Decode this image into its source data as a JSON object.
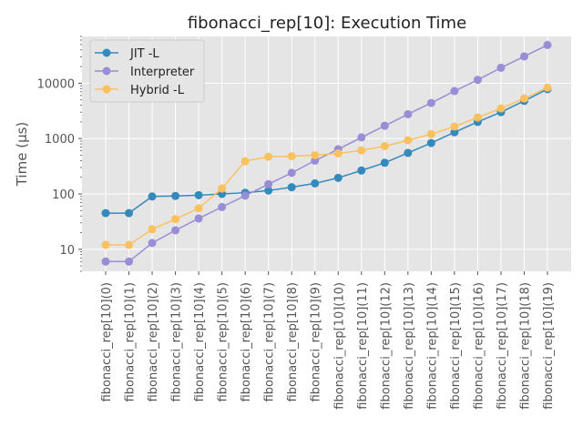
{
  "chart_data": {
    "type": "line",
    "title": "fibonacci_rep[10]: Execution Time",
    "xlabel": "",
    "ylabel": "Time (μs)",
    "yscale": "log",
    "ylim": [
      4,
      70000
    ],
    "grid": true,
    "legend_position": "top-left",
    "categories": [
      "fibonacci_rep[10](0)",
      "fibonacci_rep[10](1)",
      "fibonacci_rep[10](2)",
      "fibonacci_rep[10](3)",
      "fibonacci_rep[10](4)",
      "fibonacci_rep[10](5)",
      "fibonacci_rep[10](6)",
      "fibonacci_rep[10](7)",
      "fibonacci_rep[10](8)",
      "fibonacci_rep[10](9)",
      "fibonacci_rep[10](10)",
      "fibonacci_rep[10](11)",
      "fibonacci_rep[10](12)",
      "fibonacci_rep[10](13)",
      "fibonacci_rep[10](14)",
      "fibonacci_rep[10](15)",
      "fibonacci_rep[10](16)",
      "fibonacci_rep[10](17)",
      "fibonacci_rep[10](18)",
      "fibonacci_rep[10](19)"
    ],
    "y_ticks": [
      {
        "value": 10,
        "label": "10"
      },
      {
        "value": 100,
        "label": "100"
      },
      {
        "value": 1000,
        "label": "1000"
      },
      {
        "value": 10000,
        "label": "10000"
      }
    ],
    "series": [
      {
        "name": "JIT -L",
        "color": "#348abd",
        "values": [
          45,
          45,
          90,
          92,
          95,
          100,
          105,
          115,
          132,
          155,
          195,
          265,
          365,
          550,
          830,
          1300,
          2000,
          3000,
          4800,
          7800
        ]
      },
      {
        "name": "Interpreter",
        "color": "#988ed5",
        "values": [
          6,
          6,
          13,
          22,
          36,
          58,
          93,
          150,
          240,
          400,
          640,
          1050,
          1700,
          2750,
          4400,
          7200,
          11500,
          19000,
          30500,
          49000
        ]
      },
      {
        "name": "Hybrid -L",
        "color": "#fbc15e",
        "values": [
          12,
          12,
          23,
          35,
          55,
          125,
          390,
          470,
          480,
          500,
          540,
          610,
          730,
          930,
          1200,
          1650,
          2400,
          3500,
          5300,
          8300
        ]
      }
    ]
  }
}
